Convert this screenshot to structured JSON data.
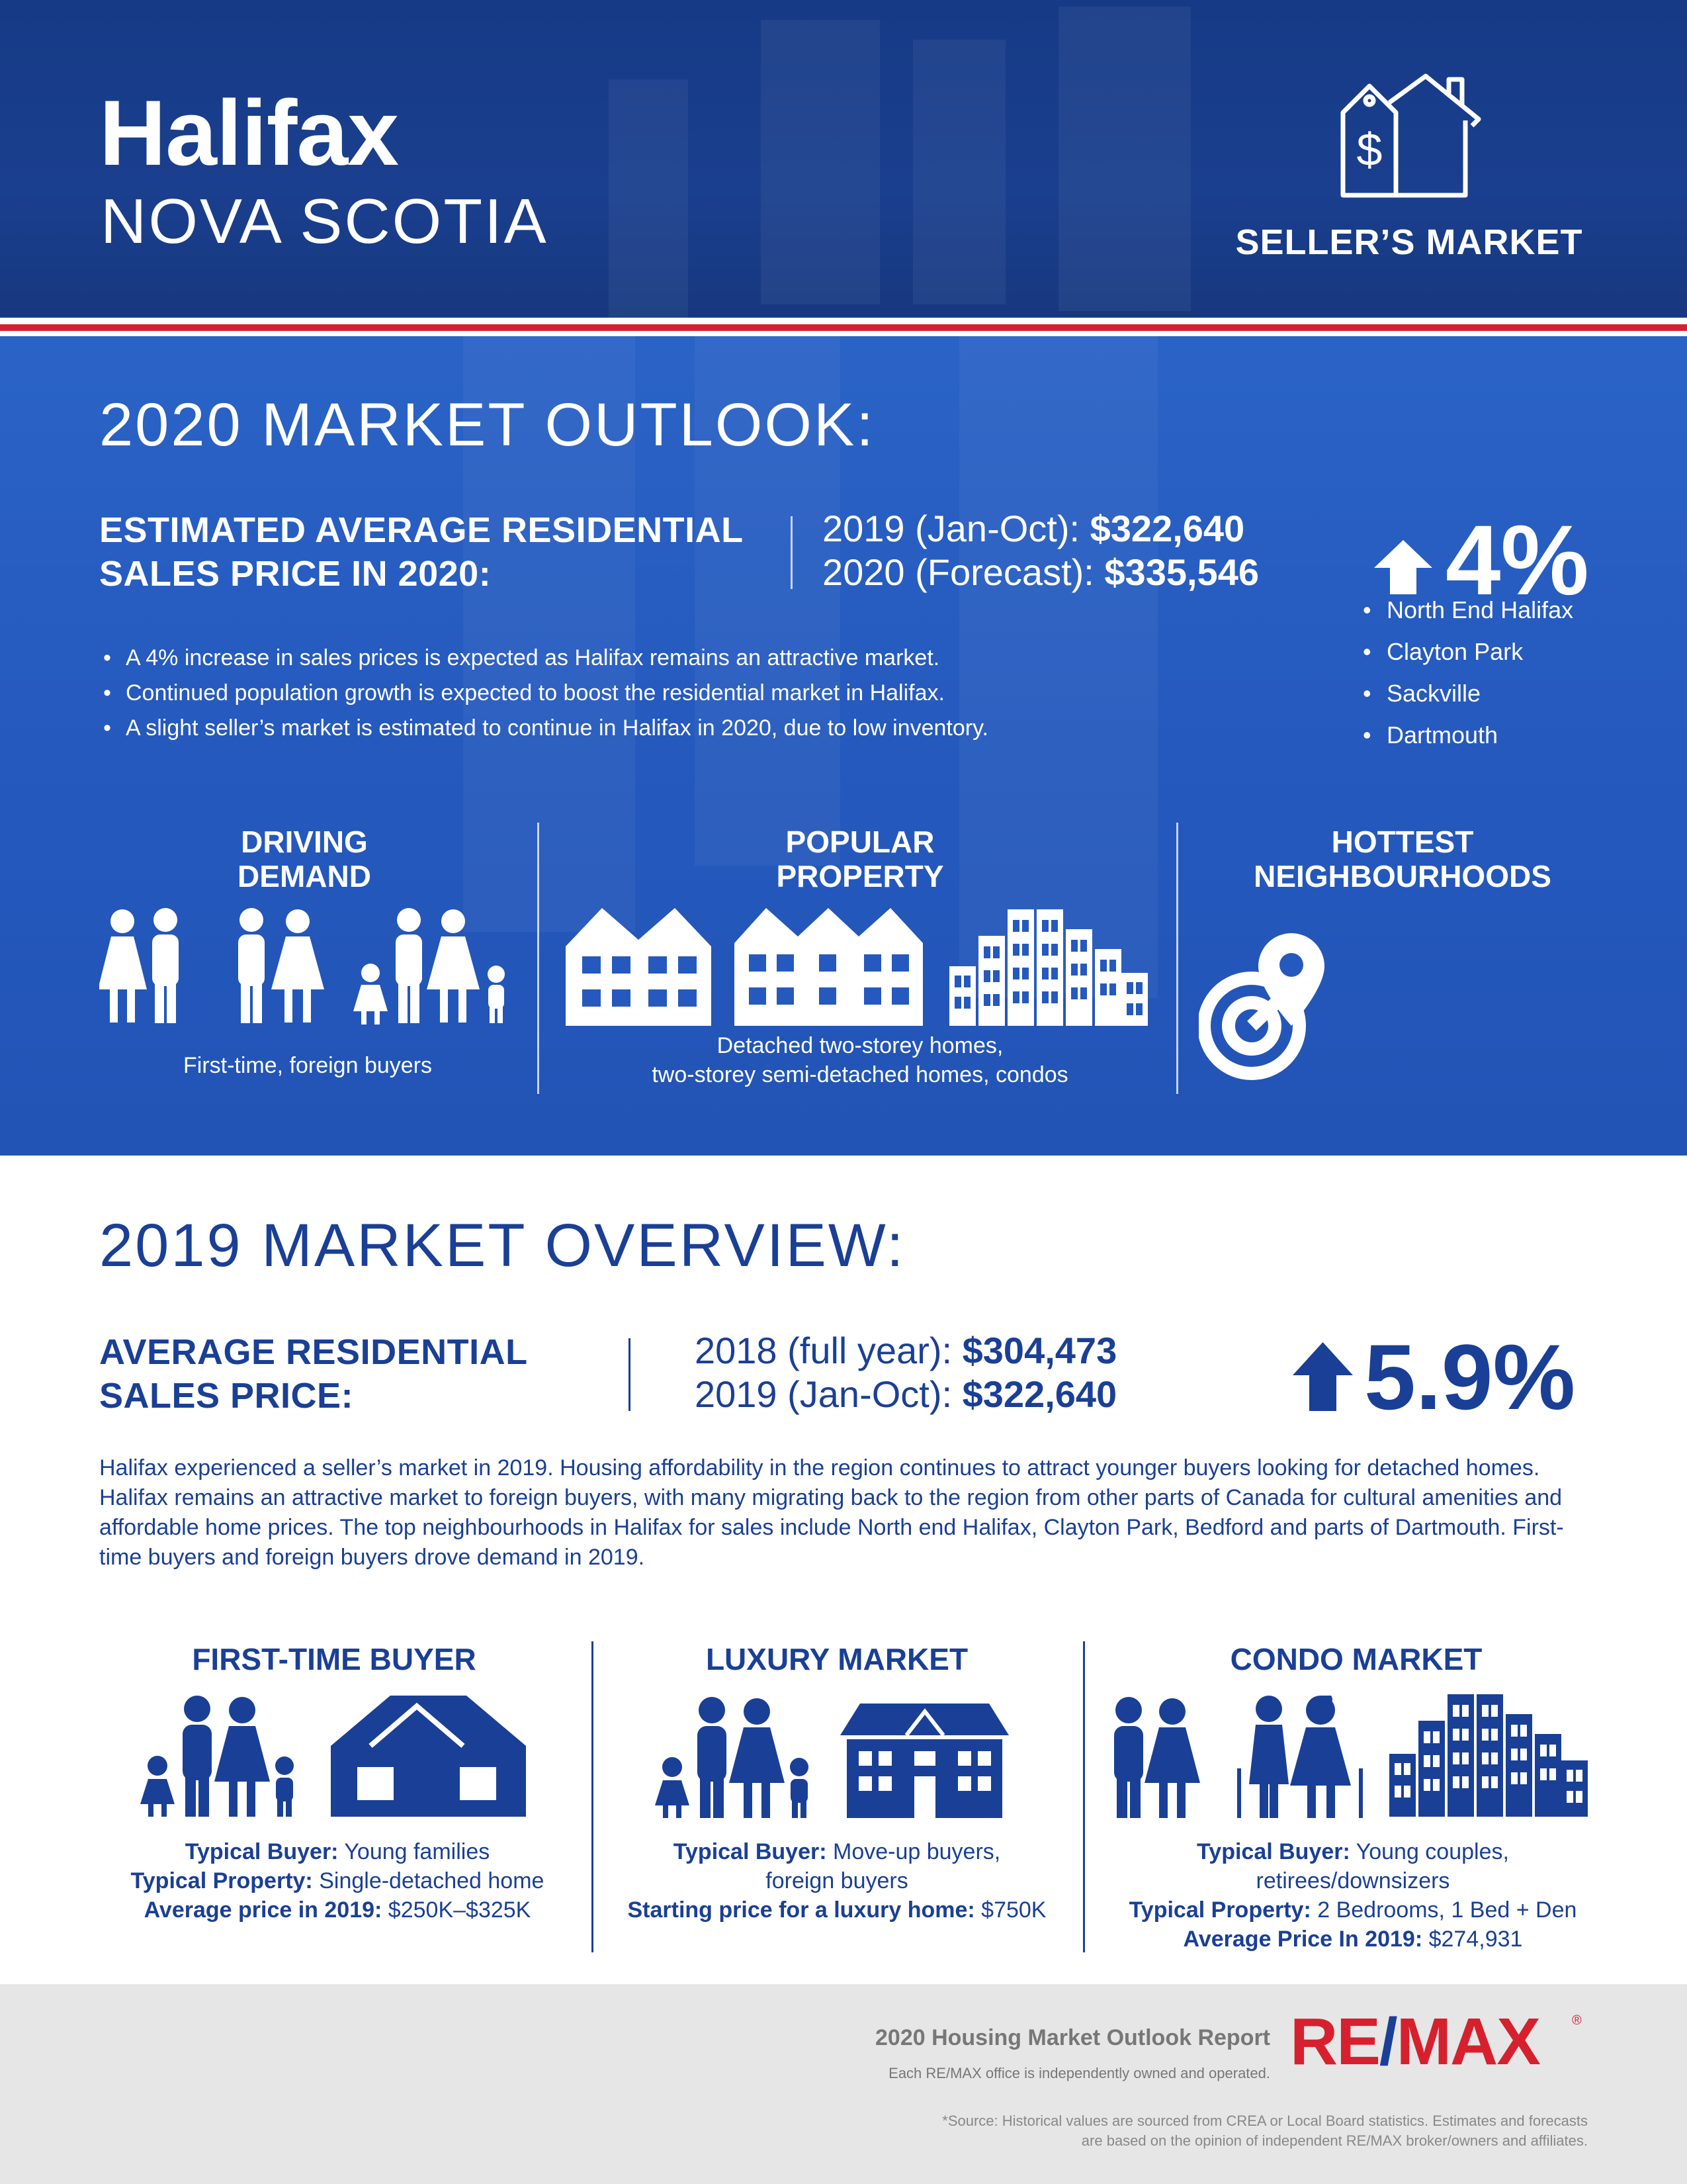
{
  "header": {
    "city": "Halifax",
    "province": "NOVA SCOTIA",
    "market_type": "SELLER’S MARKET",
    "market_icon": "house-price-tag-icon"
  },
  "outlook": {
    "heading": "2020 MARKET OUTLOOK:",
    "label_line1": "ESTIMATED AVERAGE RESIDENTIAL",
    "label_line2": "SALES PRICE IN 2020:",
    "price1_label": "2019 (Jan-Oct): ",
    "price1_value": "$322,640",
    "price2_label": "2020 (Forecast): ",
    "price2_value": "$335,546",
    "change": "4%",
    "change_direction": "up",
    "bullets": [
      "A 4% increase in sales prices is expected as Halifax remains an attractive market.",
      "Continued population growth is expected to boost the residential market in Halifax.",
      "A slight seller’s market is estimated to continue in Halifax in 2020, due to low inventory."
    ],
    "driving_demand": {
      "title_line1": "DRIVING",
      "title_line2": "DEMAND",
      "caption": "First-time, foreign buyers",
      "icon": "people-families-icon"
    },
    "popular_property": {
      "title_line1": "POPULAR",
      "title_line2": "PROPERTY",
      "caption_line1": "Detached two-storey homes,",
      "caption_line2": "two-storey semi-detached homes, condos",
      "icons": [
        "detached-house-icon",
        "semi-detached-house-icon",
        "condo-building-icon"
      ]
    },
    "hottest_neighbourhoods": {
      "title_line1": "HOTTEST",
      "title_line2": "NEIGHBOURHOODS",
      "icon": "map-pin-target-icon",
      "items": [
        "North End Halifax",
        "Clayton Park",
        "Sackville",
        "Dartmouth"
      ]
    }
  },
  "overview": {
    "heading": "2019 MARKET OVERVIEW:",
    "label_line1": "AVERAGE RESIDENTIAL",
    "label_line2": "SALES PRICE:",
    "price1_label": "2018 (full year): ",
    "price1_value": "$304,473",
    "price2_label": "2019 (Jan-Oct): ",
    "price2_value": "$322,640",
    "change": "5.9%",
    "change_direction": "up",
    "paragraph": "Halifax experienced a seller’s market in 2019. Housing affordability in the region continues to attract younger buyers looking for detached homes. Halifax remains an attractive market to foreign buyers, with many migrating back to the region from other parts of Canada for cultural amenities and affordable home prices. The top neighbourhoods in Halifax for sales include North end Halifax, Clayton Park, Bedford and parts of Dartmouth. First-time buyers and foreign buyers drove demand in 2019.",
    "segments": {
      "first_time": {
        "title": "FIRST-TIME BUYER",
        "l1_label": "Typical Buyer:",
        "l1_value": " Young families",
        "l2_label": "Typical Property:",
        "l2_value": " Single-detached home",
        "l3_label": "Average price in 2019:",
        "l3_value": " $250K–$325K"
      },
      "luxury": {
        "title": "LUXURY MARKET",
        "l1_label": "Typical Buyer:",
        "l1_value": " Move-up buyers,",
        "l2_value": "foreign buyers",
        "l3_label": "Starting price for a luxury home:",
        "l3_value": " $750K"
      },
      "condo": {
        "title": "CONDO MARKET",
        "l1_label": "Typical Buyer:",
        "l1_value": " Young couples,",
        "l2_value": "retirees/downsizers",
        "l3_label": "Typical Property:",
        "l3_value": " 2 Bedrooms, 1 Bed + Den",
        "l4_label": "Average Price In 2019:",
        "l4_value": " $274,931"
      }
    }
  },
  "footer": {
    "report_title": "2020 Housing Market Outlook Report",
    "independent": "Each RE/MAX office is independently owned and operated.",
    "logo_part1": "RE",
    "logo_slash": "/",
    "logo_part2": "MAX",
    "logo_reg": "®",
    "source_line1": "*Source: Historical values are sourced from CREA or Local Board statistics. Estimates and forecasts",
    "source_line2": "are based on the opinion of independent RE/MAX broker/owners and affiliates.",
    "colors": {
      "brand_red": "#d6202e",
      "brand_blue": "#1a3f96"
    }
  }
}
